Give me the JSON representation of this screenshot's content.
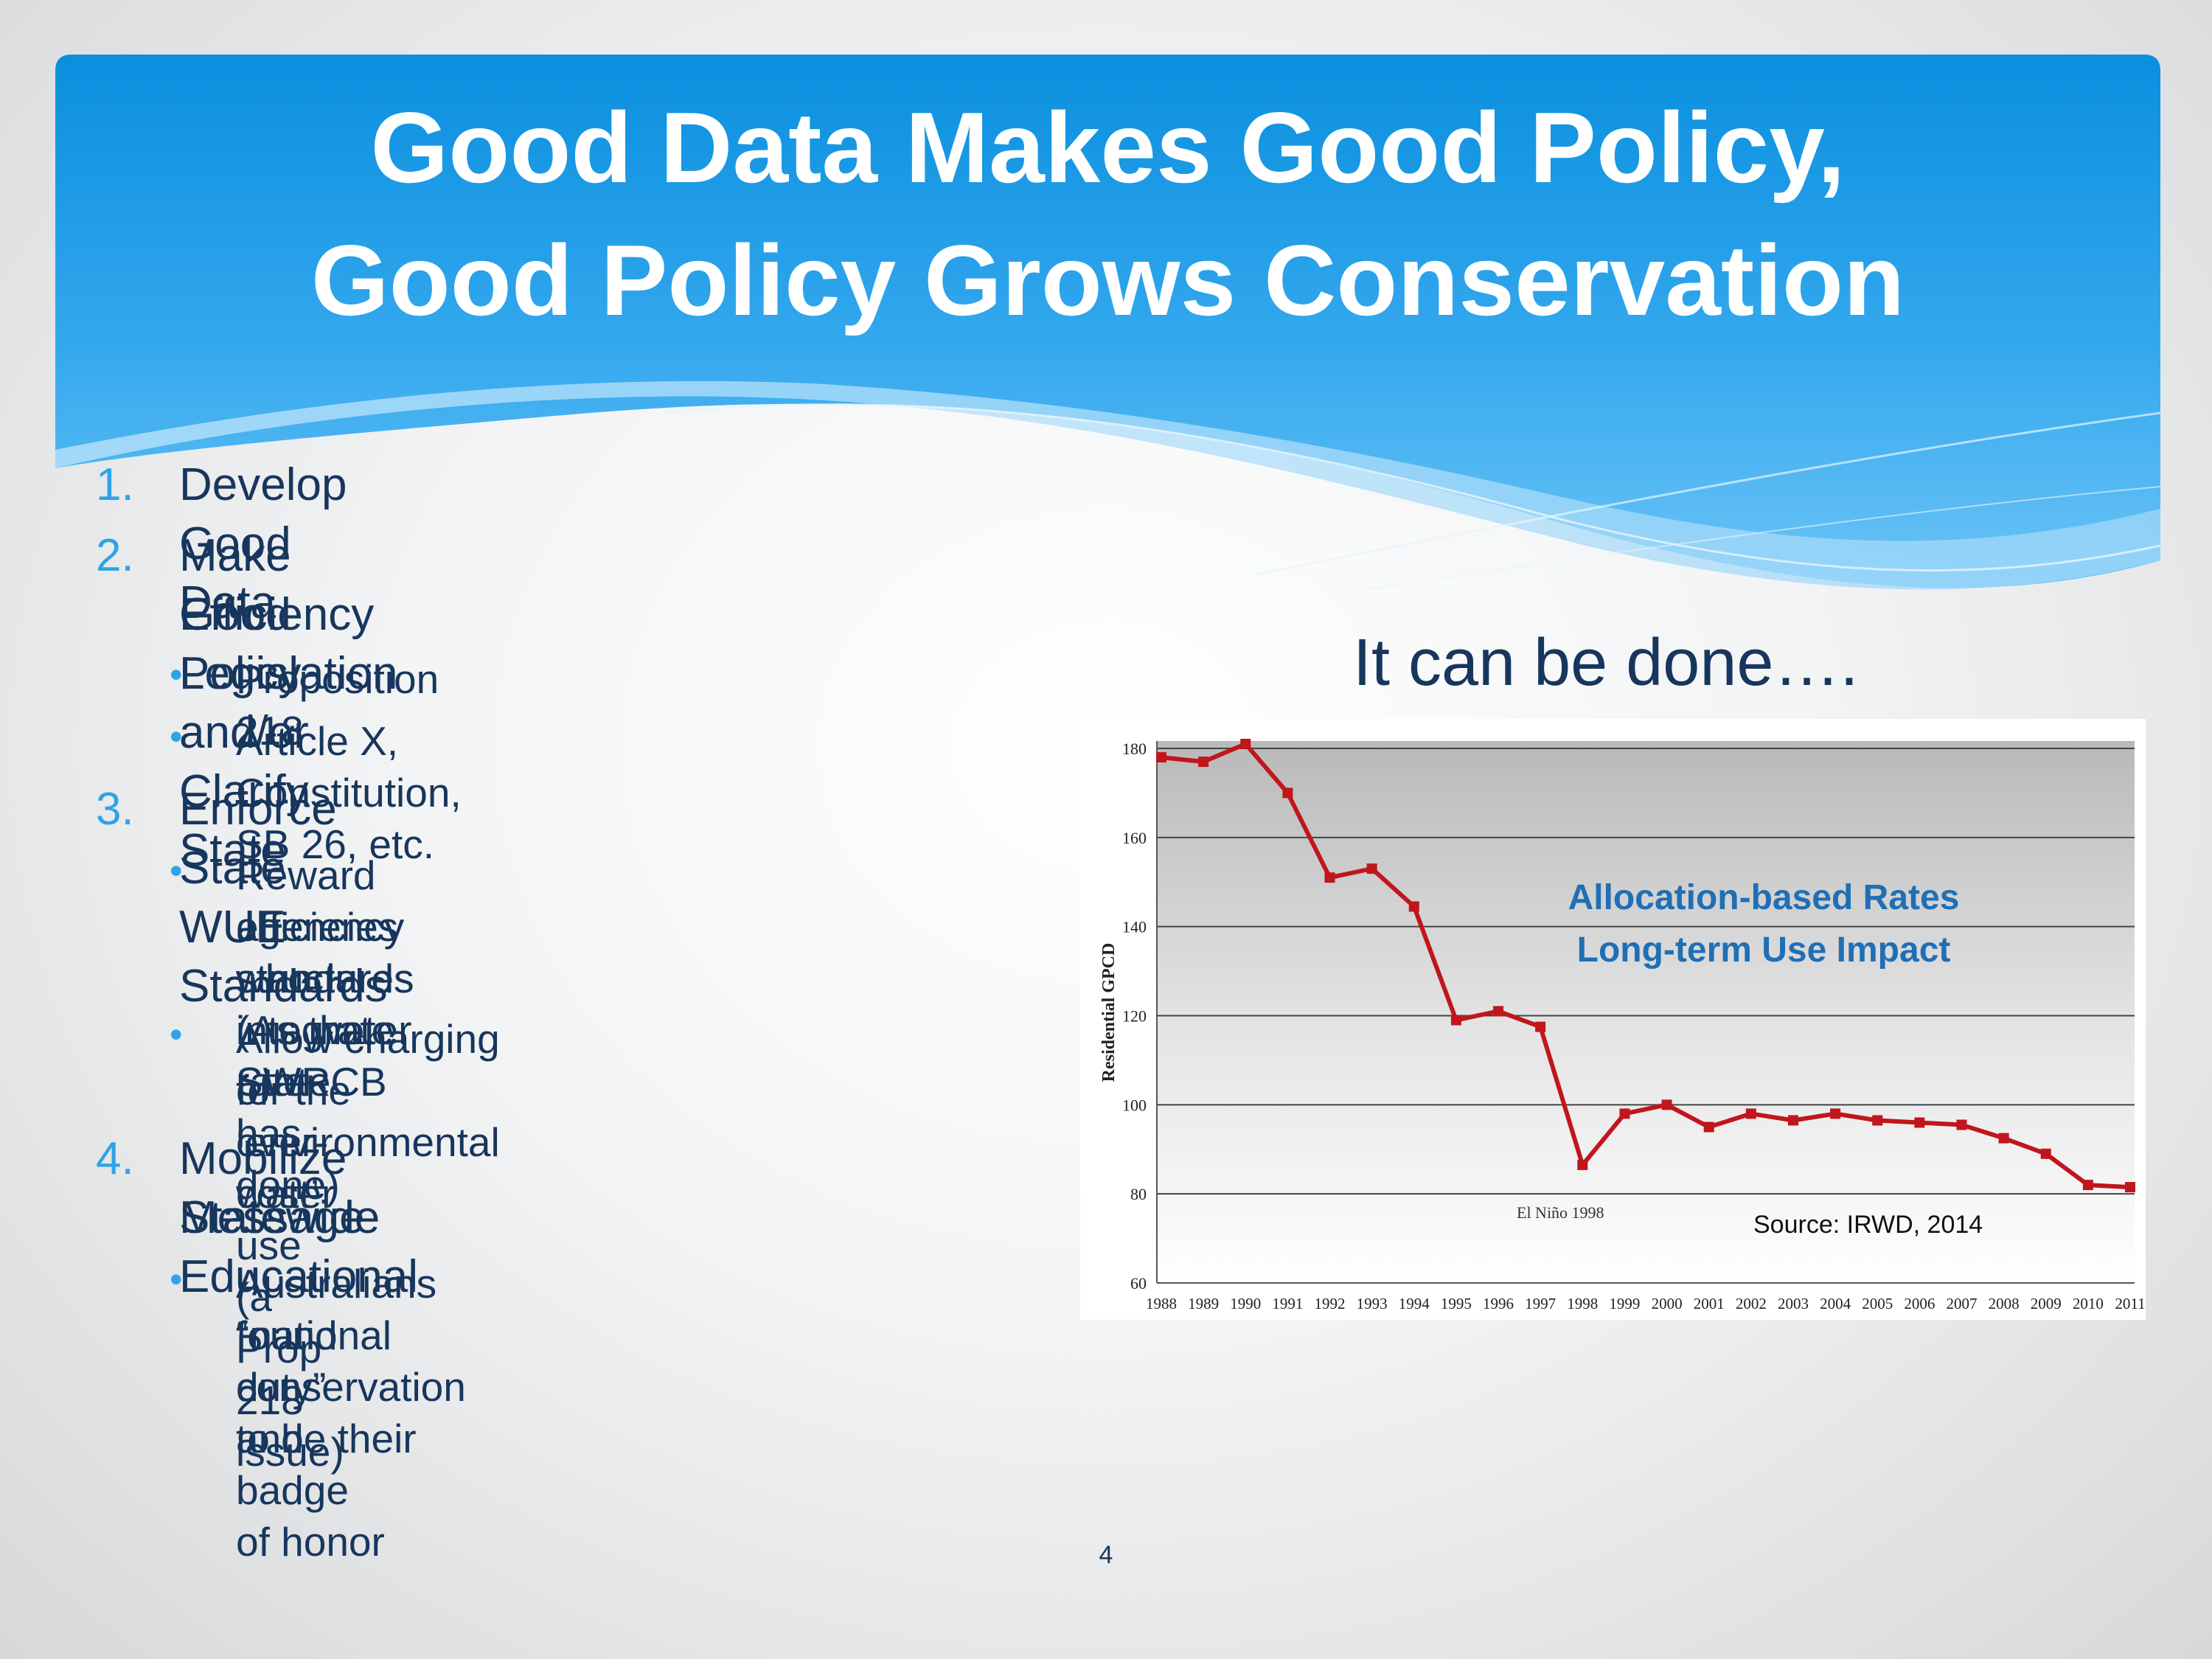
{
  "slide": {
    "title_line_1": "Good Data Makes Good Policy,",
    "title_line_2": "Good Policy Grows Conservation",
    "page_number": "4"
  },
  "outline": [
    {
      "number": "1.",
      "text": [
        "Develop Good Data"
      ],
      "bullets": []
    },
    {
      "number": "2.",
      "text": [
        "Make Good Policy and/or Clarify State",
        "Efficiency Legislation"
      ],
      "bullets": [
        [
          "Proposition 218"
        ],
        [
          "Article X, Constitution, SB 26, etc."
        ]
      ]
    },
    {
      "number": "3.",
      "text": [
        "Enforce State WUE Standards"
      ],
      "bullets": [
        [
          "Reward agencies who integrate State",
          "efficiency standards into water rate",
          "structures (As the SWRCB has done)"
        ],
        [
          "Allow charging for the ‘environmental cost’",
          "of over-water use (a Prop 218 issue)"
        ]
      ]
    },
    {
      "number": "4.",
      "text": [
        "Mobilize Statewide Educational",
        "Message"
      ],
      "bullets": [
        [
          "Australians found conservation to be their",
          "“national duty” and badge of honor"
        ]
      ]
    }
  ],
  "chart_heading": "It can be done….",
  "colors": {
    "header_blue": "#0a93e0",
    "text_navy": "#17365d",
    "number_blue": "#2ea3e6",
    "series_red": "#c0161c",
    "annotation_blue": "#1f6fb5"
  },
  "chart_data": {
    "type": "line",
    "title": "",
    "xlabel": "",
    "ylabel": "Residential GPCD",
    "ylim": [
      60,
      180
    ],
    "yticks": [
      60,
      80,
      100,
      120,
      140,
      160,
      180
    ],
    "x": [
      1988,
      1989,
      1990,
      1991,
      1992,
      1993,
      1994,
      1995,
      1996,
      1997,
      1998,
      1999,
      2000,
      2001,
      2002,
      2003,
      2004,
      2005,
      2006,
      2007,
      2008,
      2009,
      2010,
      2011
    ],
    "series": [
      {
        "name": "Residential GPCD",
        "values": [
          178,
          177,
          181,
          170,
          151,
          153,
          144.5,
          119,
          121,
          117.5,
          86.5,
          98,
          100,
          95,
          98,
          96.5,
          98,
          96.5,
          96,
          95.5,
          92.5,
          89,
          82,
          81.5
        ]
      }
    ],
    "annotations": {
      "label_line_1": "Allocation-based Rates",
      "label_line_2": "Long-term Use Impact",
      "el_nino": "El Niño 1998",
      "source": "Source: IRWD, 2014"
    },
    "grid": true
  }
}
